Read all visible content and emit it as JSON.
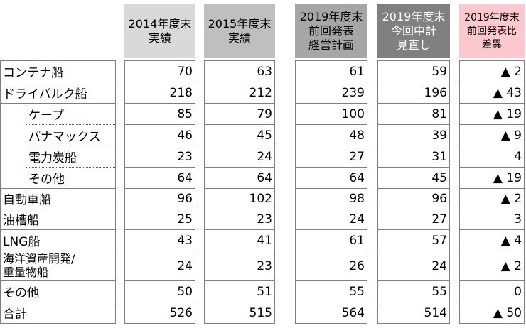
{
  "headers": {
    "col1": "2014年度末\n実績",
    "col2": "2015年度末\n実績",
    "col3": "2019年度末\n前回発表\n経営計画",
    "col4": "2019年度末\n今回中計\n見直し",
    "col5": "2019年度末\n前回発表比\n差異"
  },
  "rows": [
    {
      "label": "コンテナ船",
      "v": [
        "70",
        "63",
        "61",
        "59",
        "▲ 2"
      ]
    },
    {
      "label": "ドライバルク船",
      "v": [
        "218",
        "212",
        "239",
        "196",
        "▲ 43"
      ]
    },
    {
      "label": "ケープ",
      "v": [
        "85",
        "79",
        "100",
        "81",
        "▲ 19"
      ]
    },
    {
      "label": "パナマックス",
      "v": [
        "46",
        "45",
        "48",
        "39",
        "▲ 9"
      ]
    },
    {
      "label": "電力炭船",
      "v": [
        "23",
        "24",
        "27",
        "31",
        "4"
      ]
    },
    {
      "label": "その他",
      "v": [
        "64",
        "64",
        "64",
        "45",
        "▲ 19"
      ]
    },
    {
      "label": "自動車船",
      "v": [
        "96",
        "102",
        "98",
        "96",
        "▲ 2"
      ]
    },
    {
      "label": "油槽船",
      "v": [
        "25",
        "23",
        "24",
        "27",
        "3"
      ]
    },
    {
      "label": "LNG船",
      "v": [
        "43",
        "41",
        "61",
        "57",
        "▲ 4"
      ]
    },
    {
      "label": "海洋資産開発/\n重量物船",
      "v": [
        "24",
        "23",
        "26",
        "24",
        "▲ 2"
      ]
    },
    {
      "label": "その他",
      "v": [
        "50",
        "51",
        "55",
        "55",
        "0"
      ]
    },
    {
      "label": "合計",
      "v": [
        "526",
        "515",
        "564",
        "514",
        "▲ 50"
      ]
    }
  ]
}
